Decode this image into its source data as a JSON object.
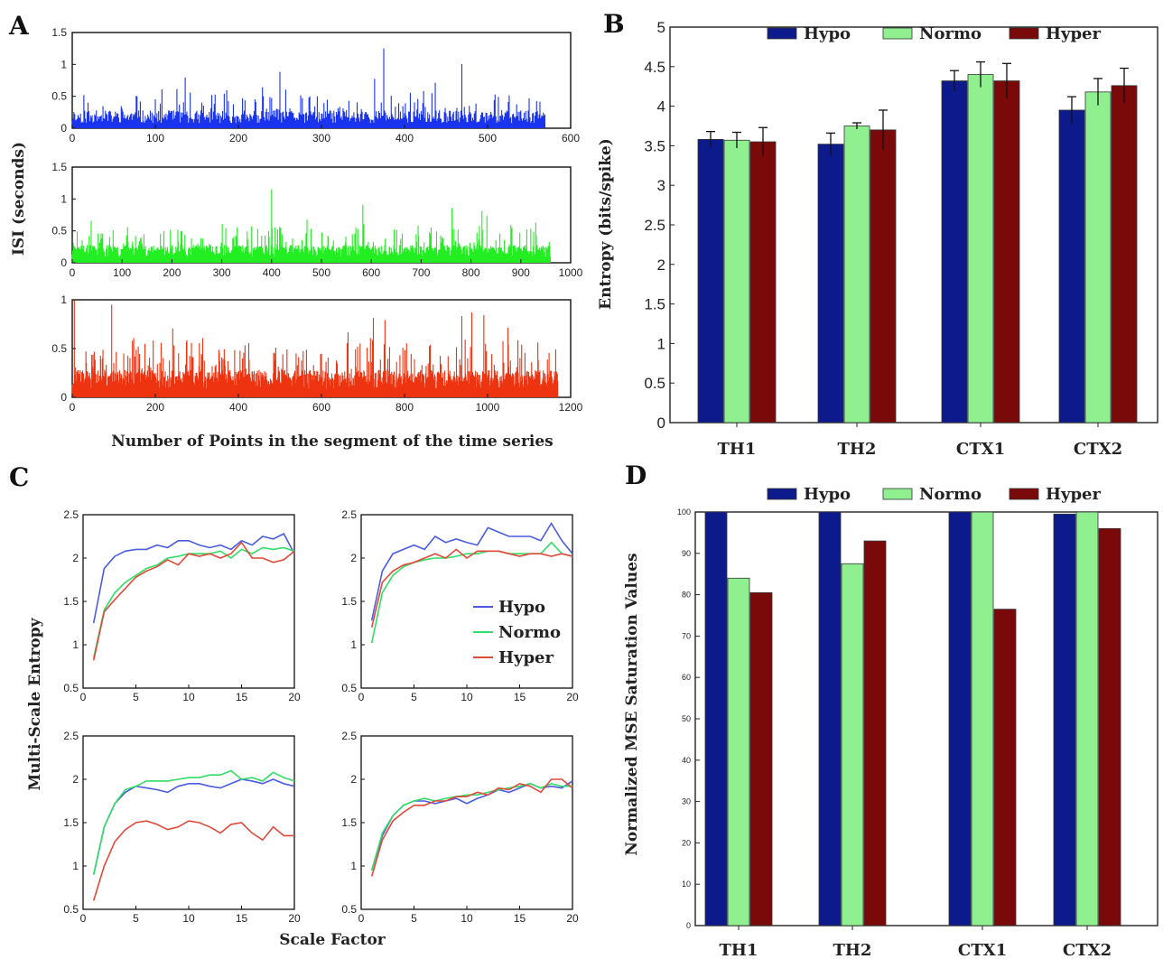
{
  "panels": {
    "A": {
      "letter": "A",
      "ylabel": "ISI (seconds)",
      "xlabel": "Number of Points in the segment of the time series",
      "plots": [
        {
          "color": "#1a33ee",
          "n": 570,
          "seed": 11,
          "xmax": 600,
          "xticks": [
            0,
            100,
            200,
            300,
            400,
            500,
            600
          ],
          "ymax": 1.5,
          "yticks": [
            0,
            0.5,
            1,
            1.5
          ],
          "ytick_labels": [
            "0",
            "0.5",
            "1",
            "1.5"
          ],
          "peak_at": 375,
          "peak_value": 1.25
        },
        {
          "color": "#22ee22",
          "n": 960,
          "seed": 23,
          "xmax": 1000,
          "xticks": [
            0,
            100,
            200,
            300,
            400,
            500,
            600,
            700,
            800,
            900,
            1000
          ],
          "ymax": 1.5,
          "yticks": [
            0,
            0.5,
            1,
            1.5
          ],
          "ytick_labels": [
            "0",
            "0.5",
            "1",
            "1.5"
          ],
          "peak_at": 400,
          "peak_value": 1.15
        },
        {
          "color": "#ee3311",
          "n": 1170,
          "seed": 37,
          "xmax": 1200,
          "xticks": [
            0,
            200,
            400,
            600,
            800,
            1000,
            1200
          ],
          "ymax": 1,
          "yticks": [
            0,
            0.5,
            1
          ],
          "ytick_labels": [
            "0",
            "0.5",
            "1"
          ],
          "peak_at": 5,
          "peak_value": 1.0
        }
      ]
    },
    "B": {
      "letter": "B",
      "ylabel": "Entropy (bits/spike)",
      "legend": [
        "Hypo",
        "Normo",
        "Hyper"
      ]
    },
    "C": {
      "letter": "C",
      "ylabel": "Multi-Scale Entropy",
      "xlabel": "Scale Factor",
      "legend": [
        "Hypo",
        "Normo",
        "Hyper"
      ]
    },
    "D": {
      "letter": "D",
      "ylabel": "Normalized MSE Saturation Values",
      "legend": [
        "Hypo",
        "Normo",
        "Hyper"
      ]
    }
  },
  "chart_data": [
    {
      "panel": "A",
      "type": "line",
      "xlabel": "Number of Points in the segment of the time series",
      "ylabel": "ISI (seconds)",
      "series": [
        {
          "color": "#1a33ee",
          "xlim": [
            0,
            600
          ],
          "ylim": [
            0,
            1.5
          ],
          "n_points": 570
        },
        {
          "color": "#22ee22",
          "xlim": [
            0,
            1000
          ],
          "ylim": [
            0,
            1.5
          ],
          "n_points": 960
        },
        {
          "color": "#ee3311",
          "xlim": [
            0,
            1200
          ],
          "ylim": [
            0,
            1
          ],
          "n_points": 1170
        }
      ]
    },
    {
      "panel": "B",
      "type": "bar",
      "ylabel": "Entropy (bits/spike)",
      "categories": [
        "TH1",
        "TH2",
        "CTX1",
        "CTX2"
      ],
      "ylim": [
        0,
        5
      ],
      "yticks": [
        0,
        0.5,
        1,
        1.5,
        2,
        2.5,
        3,
        3.5,
        4,
        4.5,
        5
      ],
      "ytick_labels": [
        "0",
        "0.5",
        "1",
        "1.5",
        "2",
        "2.5",
        "3",
        "3.5",
        "4",
        "4.5",
        "5"
      ],
      "series": [
        {
          "name": "Hypo",
          "color": "#0d1a8c",
          "values": [
            3.58,
            3.52,
            4.32,
            3.95
          ],
          "errors": [
            0.1,
            0.14,
            0.13,
            0.17
          ]
        },
        {
          "name": "Normo",
          "color": "#90f090",
          "values": [
            3.57,
            3.75,
            4.4,
            4.18
          ],
          "errors": [
            0.1,
            0.04,
            0.16,
            0.17
          ]
        },
        {
          "name": "Hyper",
          "color": "#7a0a0a",
          "values": [
            3.55,
            3.7,
            4.32,
            4.26
          ],
          "errors": [
            0.18,
            0.25,
            0.22,
            0.22
          ]
        }
      ],
      "legend_position": "top"
    },
    {
      "panel": "C",
      "type": "line",
      "xlabel": "Scale Factor",
      "ylabel": "Multi-Scale Entropy",
      "xlim": [
        0,
        20
      ],
      "ylim": [
        0.5,
        2.5
      ],
      "xticks": [
        0,
        5,
        10,
        15,
        20
      ],
      "xtick_labels": [
        "0",
        "5",
        "10",
        "15",
        "20"
      ],
      "yticks": [
        0.5,
        1,
        1.5,
        2,
        2.5
      ],
      "ytick_labels": [
        "0.5",
        "1",
        "1.5",
        "2",
        "2.5"
      ],
      "x": [
        1,
        2,
        3,
        4,
        5,
        6,
        7,
        8,
        9,
        10,
        11,
        12,
        13,
        14,
        15,
        16,
        17,
        18,
        19,
        20
      ],
      "subplots": [
        {
          "series": [
            {
              "name": "Hypo",
              "color": "#4a5de0",
              "values": [
                1.25,
                1.88,
                2.02,
                2.08,
                2.1,
                2.1,
                2.15,
                2.12,
                2.2,
                2.2,
                2.15,
                2.12,
                2.15,
                2.1,
                2.2,
                2.15,
                2.25,
                2.22,
                2.28,
                2.05
              ]
            },
            {
              "name": "Normo",
              "color": "#33dd66",
              "values": [
                0.85,
                1.4,
                1.6,
                1.72,
                1.8,
                1.88,
                1.92,
                2.0,
                2.02,
                2.05,
                2.05,
                2.05,
                2.08,
                2.0,
                2.1,
                2.05,
                2.12,
                2.1,
                2.12,
                2.08
              ]
            },
            {
              "name": "Hyper",
              "color": "#e04a3a",
              "values": [
                0.82,
                1.38,
                1.52,
                1.65,
                1.78,
                1.85,
                1.9,
                1.98,
                1.92,
                2.05,
                2.02,
                2.05,
                2.0,
                2.05,
                2.18,
                2.0,
                2.0,
                1.95,
                1.98,
                2.08
              ]
            }
          ]
        },
        {
          "series": [
            {
              "name": "Hypo",
              "color": "#4a5de0",
              "values": [
                1.28,
                1.85,
                2.05,
                2.1,
                2.15,
                2.1,
                2.25,
                2.18,
                2.22,
                2.18,
                2.15,
                2.35,
                2.3,
                2.25,
                2.25,
                2.25,
                2.2,
                2.4,
                2.2,
                2.05
              ]
            },
            {
              "name": "Normo",
              "color": "#33dd66",
              "values": [
                1.02,
                1.6,
                1.8,
                1.9,
                1.95,
                1.98,
                2.0,
                2.0,
                2.02,
                2.05,
                2.05,
                2.08,
                2.08,
                2.05,
                2.05,
                2.05,
                2.05,
                2.18,
                2.05,
                2.02
              ]
            },
            {
              "name": "Hyper",
              "color": "#e04a3a",
              "values": [
                1.2,
                1.72,
                1.85,
                1.92,
                1.95,
                2.0,
                2.05,
                2.0,
                2.1,
                2.0,
                2.08,
                2.08,
                2.08,
                2.05,
                2.02,
                2.05,
                2.05,
                2.02,
                2.05,
                2.02
              ]
            }
          ]
        },
        {
          "series": [
            {
              "name": "Hypo",
              "color": "#4a5de0",
              "values": [
                0.9,
                1.45,
                1.72,
                1.85,
                1.92,
                1.9,
                1.88,
                1.85,
                1.92,
                1.95,
                1.95,
                1.92,
                1.9,
                1.95,
                2.0,
                1.98,
                1.95,
                2.0,
                1.95,
                1.92
              ]
            },
            {
              "name": "Normo",
              "color": "#33dd66",
              "values": [
                0.9,
                1.45,
                1.72,
                1.88,
                1.92,
                1.98,
                1.98,
                1.98,
                2.0,
                2.02,
                2.02,
                2.05,
                2.05,
                2.1,
                2.0,
                2.02,
                1.98,
                2.08,
                2.02,
                1.98
              ]
            },
            {
              "name": "Hyper",
              "color": "#e04a3a",
              "values": [
                0.6,
                1.0,
                1.28,
                1.42,
                1.5,
                1.52,
                1.48,
                1.42,
                1.45,
                1.52,
                1.5,
                1.45,
                1.38,
                1.48,
                1.5,
                1.38,
                1.3,
                1.45,
                1.35,
                1.35
              ]
            }
          ]
        },
        {
          "series": [
            {
              "name": "Hypo",
              "color": "#4a5de0",
              "values": [
                0.95,
                1.35,
                1.58,
                1.7,
                1.75,
                1.75,
                1.72,
                1.75,
                1.78,
                1.72,
                1.78,
                1.82,
                1.88,
                1.85,
                1.9,
                1.95,
                1.9,
                1.92,
                1.9,
                1.98
              ]
            },
            {
              "name": "Normo",
              "color": "#33dd66",
              "values": [
                0.95,
                1.38,
                1.58,
                1.7,
                1.75,
                1.78,
                1.75,
                1.78,
                1.8,
                1.82,
                1.82,
                1.85,
                1.88,
                1.9,
                1.92,
                1.95,
                1.9,
                1.95,
                1.92,
                1.92
              ]
            },
            {
              "name": "Hyper",
              "color": "#e04a3a",
              "values": [
                0.88,
                1.3,
                1.52,
                1.62,
                1.7,
                1.7,
                1.75,
                1.75,
                1.8,
                1.8,
                1.85,
                1.82,
                1.9,
                1.88,
                1.95,
                1.92,
                1.85,
                2.0,
                2.0,
                1.9
              ]
            }
          ]
        }
      ],
      "legend_position": "inside top-right plot"
    },
    {
      "panel": "D",
      "type": "bar",
      "ylabel": "Normalized MSE Saturation Values",
      "categories": [
        "TH1",
        "TH2",
        "CTX1",
        "CTX2"
      ],
      "ylim": [
        0,
        100
      ],
      "yticks": [
        0,
        10,
        20,
        30,
        40,
        50,
        60,
        70,
        80,
        90,
        100
      ],
      "ytick_labels": [
        "0",
        "10",
        "20",
        "30",
        "40",
        "50",
        "60",
        "70",
        "80",
        "90",
        "100"
      ],
      "series": [
        {
          "name": "Hypo",
          "color": "#0d1a8c",
          "values": [
            100,
            100,
            100,
            99.5
          ]
        },
        {
          "name": "Normo",
          "color": "#90f090",
          "values": [
            84,
            87.5,
            100,
            100
          ]
        },
        {
          "name": "Hyper",
          "color": "#7a0a0a",
          "values": [
            80.5,
            93,
            76.5,
            96
          ]
        }
      ],
      "legend_position": "top"
    }
  ]
}
